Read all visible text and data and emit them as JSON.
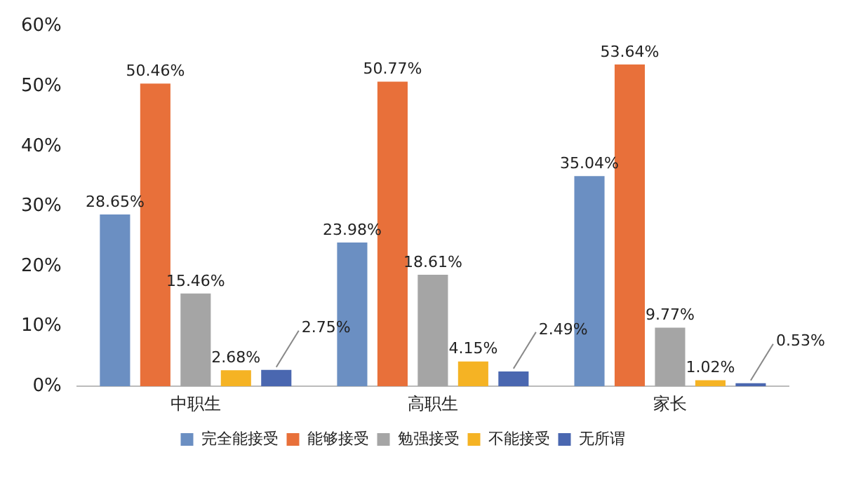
{
  "chart_data": {
    "type": "bar",
    "categories": [
      "中职生",
      "高职生",
      "家长"
    ],
    "series": [
      {
        "name": "完全能接受",
        "color": "#6b8fc2",
        "values": [
          28.65,
          23.98,
          35.04
        ],
        "value_labels": [
          "28.65%",
          "23.98%",
          "35.04%"
        ]
      },
      {
        "name": "能够接受",
        "color": "#e8703a",
        "values": [
          50.46,
          50.77,
          53.64
        ],
        "value_labels": [
          "50.46%",
          "50.77%",
          "53.64%"
        ]
      },
      {
        "name": "勉强接受",
        "color": "#a5a5a5",
        "values": [
          15.46,
          18.61,
          9.77
        ],
        "value_labels": [
          "15.46%",
          "18.61%",
          "9.77%"
        ]
      },
      {
        "name": "不能接受",
        "color": "#f5b324",
        "values": [
          2.68,
          4.15,
          1.02
        ],
        "value_labels": [
          "2.68%",
          "4.15%",
          "1.02%"
        ]
      },
      {
        "name": "无所谓",
        "color": "#4a67b0",
        "values": [
          2.75,
          2.49,
          0.53
        ],
        "value_labels": [
          "2.75%",
          "2.49%",
          "0.53%"
        ]
      }
    ],
    "ylim": [
      0,
      60
    ],
    "yticks": [
      {
        "value": 0,
        "label": "0%"
      },
      {
        "value": 10,
        "label": "10%"
      },
      {
        "value": 20,
        "label": "20%"
      },
      {
        "value": 30,
        "label": "30%"
      },
      {
        "value": 40,
        "label": "40%"
      },
      {
        "value": 50,
        "label": "50%"
      },
      {
        "value": 60,
        "label": "60%"
      }
    ],
    "grid": false,
    "legend": "bottom"
  }
}
